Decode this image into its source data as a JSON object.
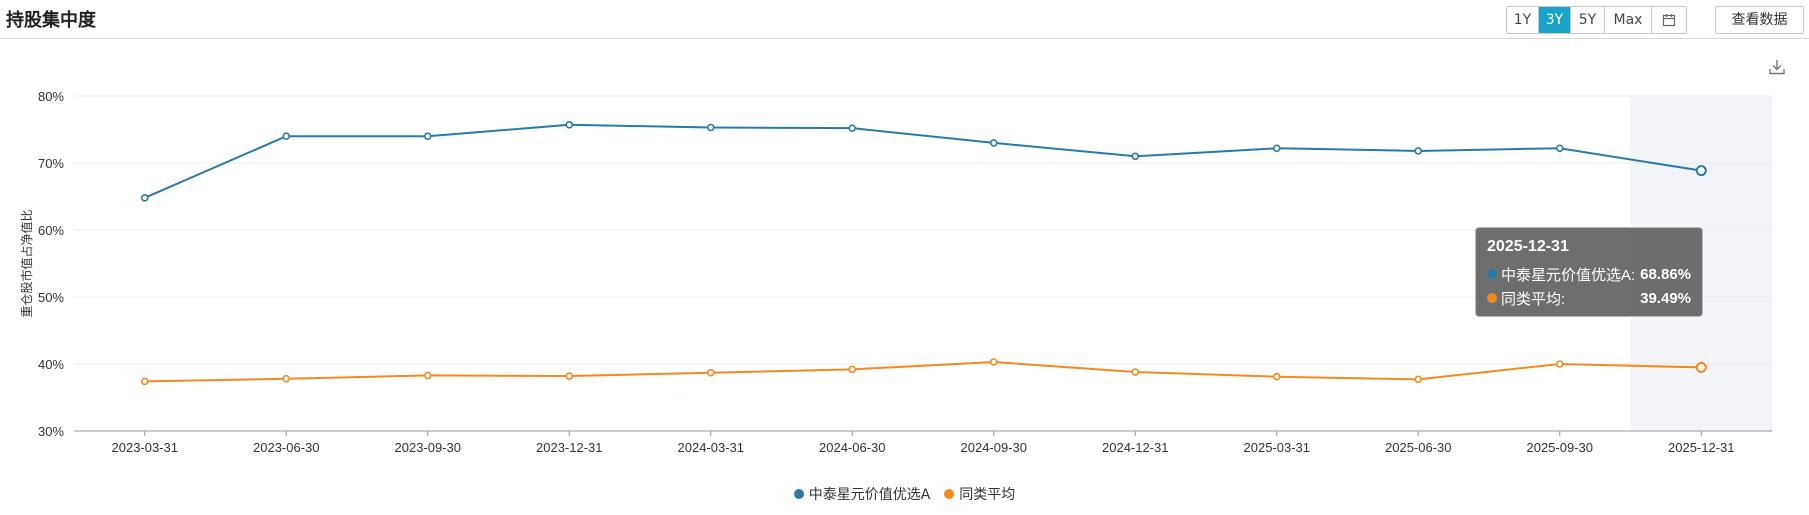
{
  "header": {
    "title": "持股集中度",
    "ranges": [
      "1Y",
      "3Y",
      "5Y",
      "Max"
    ],
    "active_range": "3Y",
    "calendar_icon": "calendar-icon",
    "view_data_label": "查看数据",
    "download_icon": "download-icon"
  },
  "colors": {
    "series_a": "#2a7aa7",
    "series_b": "#f28a1e",
    "active_range_bg": "#1aa3c8",
    "highlight_band": "#f3f4f8"
  },
  "tooltip": {
    "date": "2025-12-31",
    "row_a_name": "中泰星元价值优选A:",
    "row_a_value": "68.86%",
    "row_b_name": "同类平均:",
    "row_b_value": "39.49%"
  },
  "chart_data": {
    "type": "line",
    "title": "",
    "xlabel": "",
    "ylabel": "重仓股市值占净值比",
    "x": [
      "2023-03-31",
      "2023-06-30",
      "2023-09-30",
      "2023-12-31",
      "2024-03-31",
      "2024-06-30",
      "2024-09-30",
      "2024-12-31",
      "2025-03-31",
      "2025-06-30",
      "2025-09-30",
      "2025-12-31"
    ],
    "ylim": [
      30,
      80
    ],
    "yticks": [
      "30%",
      "40%",
      "50%",
      "60%",
      "70%",
      "80%"
    ],
    "grid": true,
    "legend": "bottom-center",
    "highlighted_x": "2025-12-31",
    "series": [
      {
        "name": "中泰星元价值优选A",
        "color": "#2a7aa7",
        "values": [
          64.8,
          74.0,
          74.0,
          75.7,
          75.3,
          75.2,
          73.0,
          71.0,
          72.2,
          71.8,
          72.2,
          68.86
        ]
      },
      {
        "name": "同类平均",
        "color": "#f28a1e",
        "values": [
          37.4,
          37.8,
          38.3,
          38.2,
          38.7,
          39.2,
          40.3,
          38.8,
          38.1,
          37.7,
          40.0,
          39.49
        ]
      }
    ]
  }
}
